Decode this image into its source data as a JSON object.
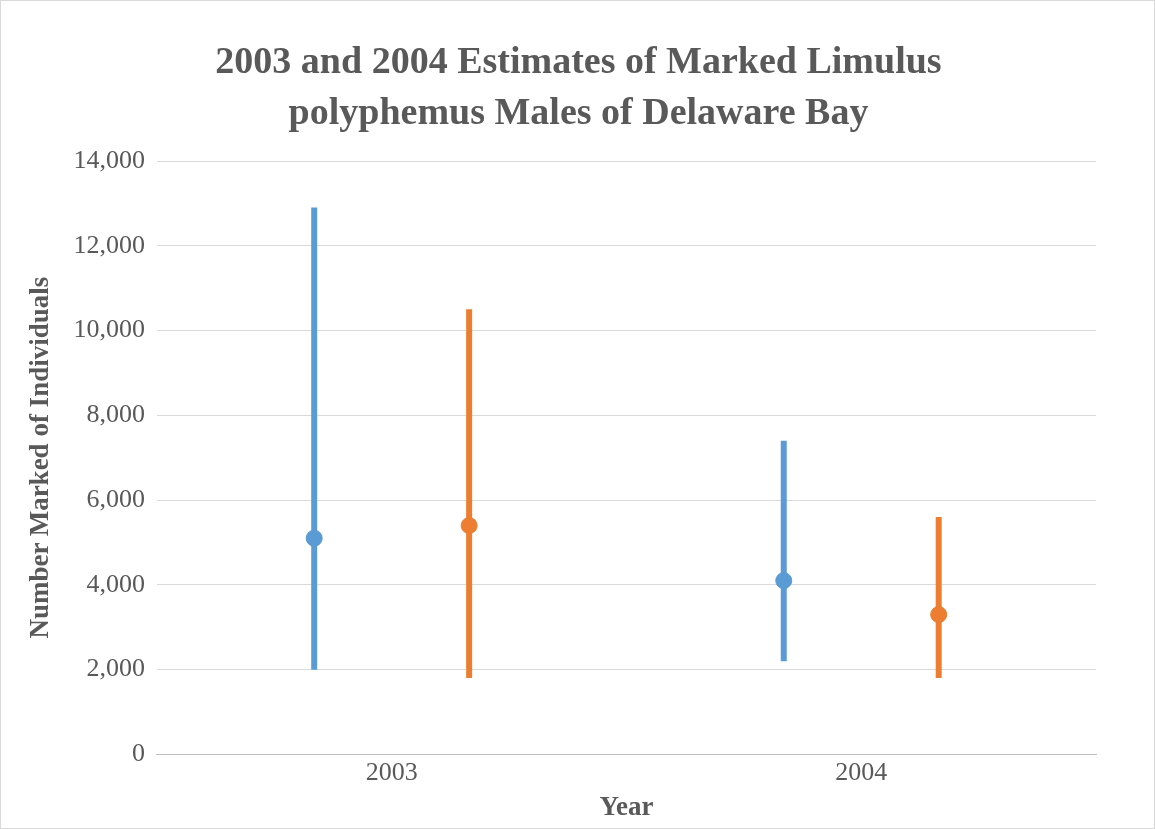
{
  "chart_data": {
    "type": "scatter",
    "title": "2003 and 2004 Estimates of Marked Limulus polyphemus Males of Delaware Bay",
    "xlabel": "Year",
    "ylabel": "Number Marked of Individuals",
    "categories": [
      "2003",
      "2004"
    ],
    "series": [
      {
        "color": "#5b9bd5",
        "values": [
          5100,
          4100
        ],
        "errors": [
          [
            2000,
            12900
          ],
          [
            2200,
            7400
          ]
        ]
      },
      {
        "color": "#ed7d31",
        "values": [
          5400,
          3300
        ],
        "errors": [
          [
            1800,
            10500
          ],
          [
            1800,
            5600
          ]
        ]
      }
    ],
    "ylim": [
      0,
      14000
    ],
    "yticks": [
      0,
      {
        "value": 2000,
        "label": "2,000"
      },
      {
        "value": 4000,
        "label": "4,000"
      },
      {
        "value": 6000,
        "label": "6,000"
      },
      {
        "value": 8000,
        "label": "8,000"
      },
      {
        "value": 10000,
        "label": "10,000"
      },
      {
        "value": 12000,
        "label": "12,000"
      },
      {
        "value": 14000,
        "label": "14,000"
      }
    ],
    "grid": "y",
    "marker": "circle",
    "legend": false
  }
}
